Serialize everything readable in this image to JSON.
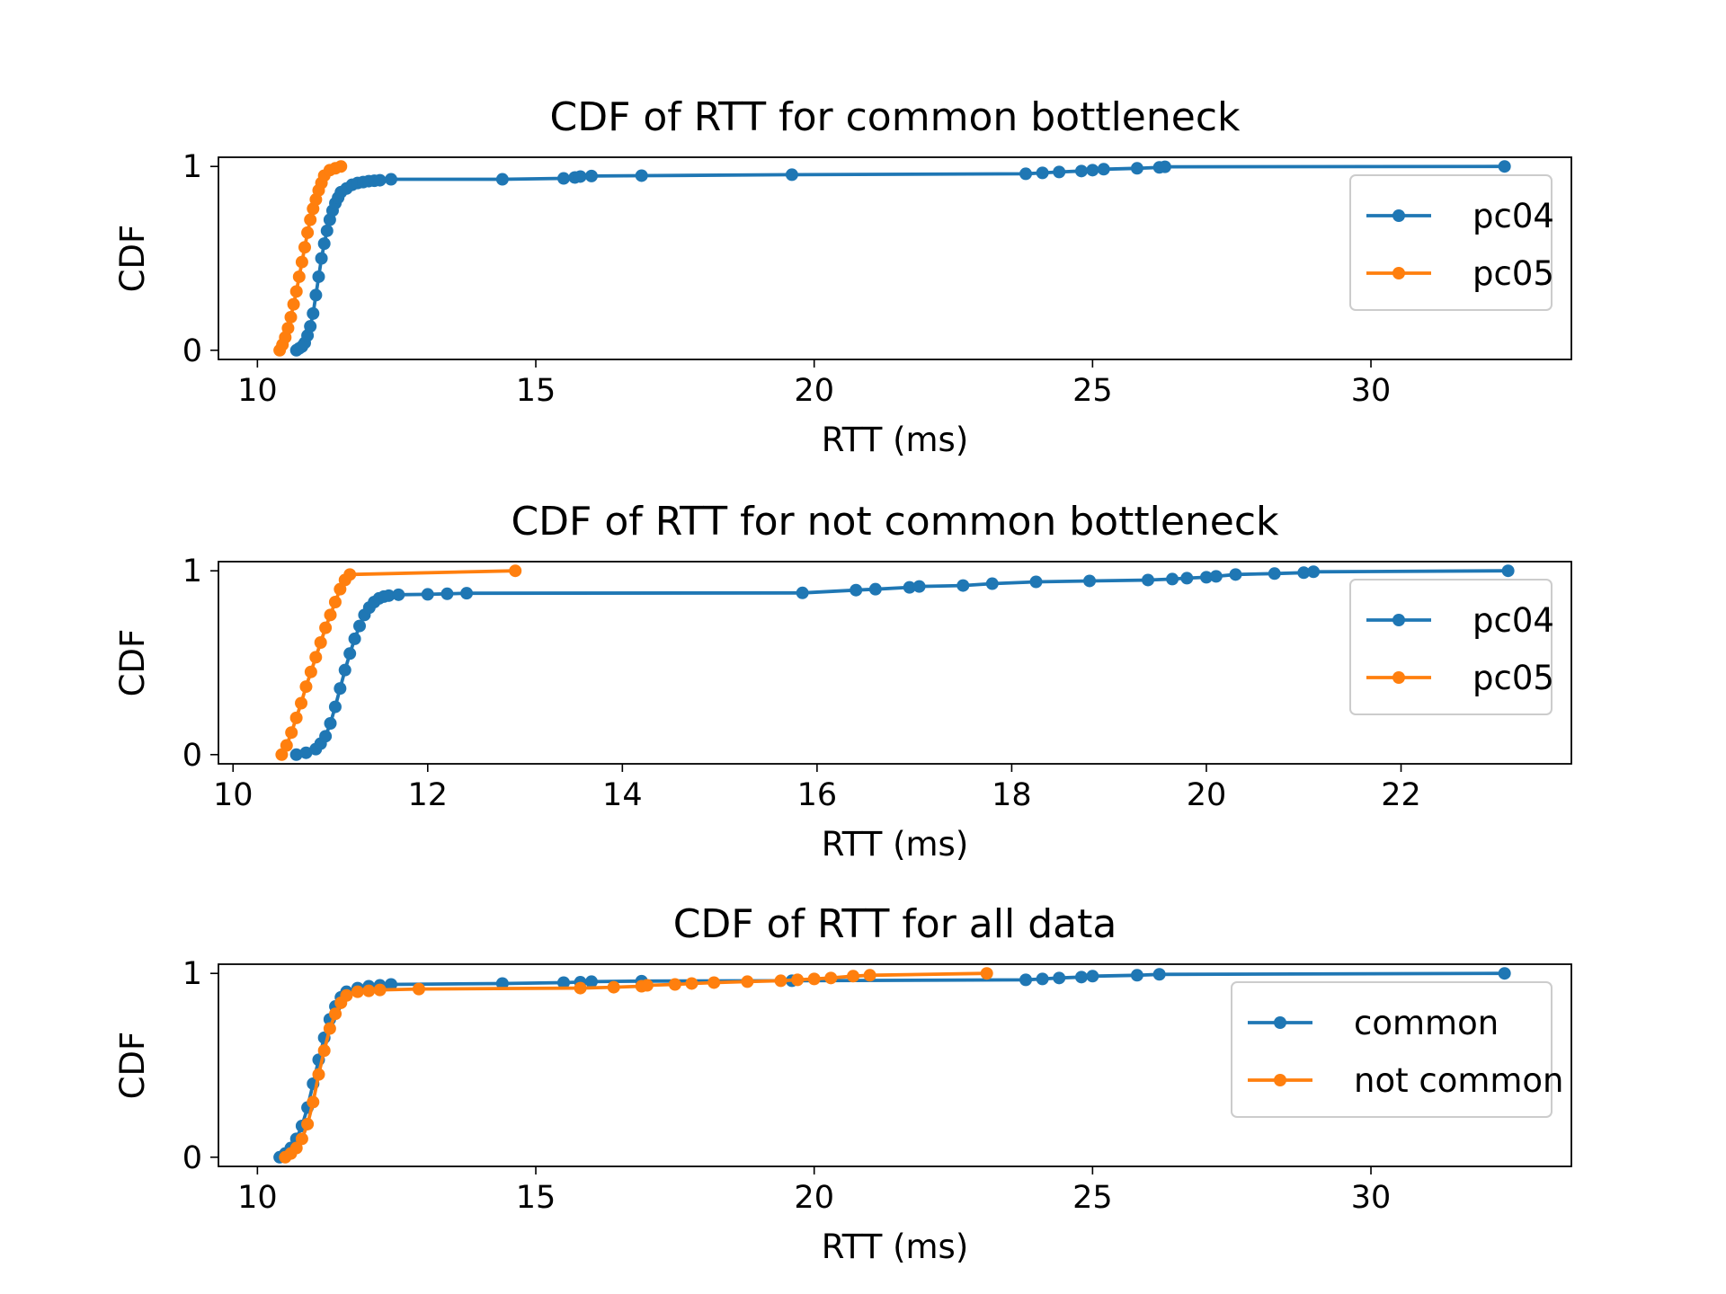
{
  "colors": {
    "series_1": "#1f77b4",
    "series_2": "#ff7f0e"
  },
  "chart_data": [
    {
      "type": "line",
      "title": "CDF of RTT for common bottleneck",
      "xlabel": "RTT (ms)",
      "ylabel": "CDF",
      "xlim": [
        9.3,
        33.6
      ],
      "ylim": [
        -0.05,
        1.05
      ],
      "xticks": [
        10,
        15,
        20,
        25,
        30
      ],
      "yticks": [
        0,
        1
      ],
      "legend": "upper-right",
      "series": [
        {
          "name": "pc04",
          "x": [
            10.7,
            10.75,
            10.8,
            10.85,
            10.9,
            10.95,
            11.0,
            11.05,
            11.1,
            11.15,
            11.2,
            11.25,
            11.3,
            11.35,
            11.4,
            11.45,
            11.5,
            11.6,
            11.7,
            11.8,
            11.9,
            12.0,
            12.1,
            12.2,
            12.4,
            14.4,
            15.5,
            15.7,
            15.8,
            16.0,
            16.9,
            19.6,
            23.8,
            24.1,
            24.4,
            24.8,
            25.0,
            25.2,
            25.8,
            26.2,
            26.3,
            32.4
          ],
          "y": [
            0.0,
            0.01,
            0.02,
            0.04,
            0.08,
            0.13,
            0.2,
            0.3,
            0.4,
            0.5,
            0.58,
            0.65,
            0.71,
            0.76,
            0.8,
            0.83,
            0.86,
            0.88,
            0.9,
            0.91,
            0.915,
            0.92,
            0.922,
            0.925,
            0.93,
            0.93,
            0.935,
            0.94,
            0.945,
            0.948,
            0.95,
            0.955,
            0.96,
            0.965,
            0.97,
            0.975,
            0.98,
            0.985,
            0.99,
            0.995,
            0.998,
            1.0
          ]
        },
        {
          "name": "pc05",
          "x": [
            10.4,
            10.45,
            10.5,
            10.55,
            10.6,
            10.65,
            10.7,
            10.75,
            10.8,
            10.85,
            10.9,
            10.95,
            11.0,
            11.05,
            11.1,
            11.15,
            11.2,
            11.3,
            11.4,
            11.5
          ],
          "y": [
            0.0,
            0.03,
            0.07,
            0.12,
            0.18,
            0.25,
            0.32,
            0.4,
            0.48,
            0.56,
            0.64,
            0.71,
            0.77,
            0.82,
            0.87,
            0.91,
            0.95,
            0.98,
            0.99,
            1.0
          ]
        }
      ]
    },
    {
      "type": "line",
      "title": "CDF of RTT for not common bottleneck",
      "xlabel": "RTT (ms)",
      "ylabel": "CDF",
      "xlim": [
        9.85,
        23.75
      ],
      "ylim": [
        -0.05,
        1.05
      ],
      "xticks": [
        10,
        12,
        14,
        16,
        18,
        20,
        22
      ],
      "yticks": [
        0,
        1
      ],
      "legend": "upper-right",
      "series": [
        {
          "name": "pc04",
          "x": [
            10.65,
            10.75,
            10.85,
            10.9,
            10.95,
            11.0,
            11.05,
            11.1,
            11.15,
            11.2,
            11.25,
            11.3,
            11.35,
            11.4,
            11.45,
            11.5,
            11.55,
            11.6,
            11.7,
            12.0,
            12.2,
            12.4,
            15.85,
            16.4,
            16.6,
            16.95,
            17.05,
            17.5,
            17.8,
            18.25,
            18.8,
            19.4,
            19.65,
            19.8,
            20.0,
            20.1,
            20.3,
            20.7,
            21.0,
            21.1,
            23.1
          ],
          "y": [
            0.0,
            0.01,
            0.03,
            0.06,
            0.1,
            0.17,
            0.26,
            0.36,
            0.46,
            0.55,
            0.63,
            0.7,
            0.76,
            0.8,
            0.83,
            0.85,
            0.86,
            0.865,
            0.87,
            0.872,
            0.875,
            0.878,
            0.88,
            0.895,
            0.9,
            0.91,
            0.915,
            0.92,
            0.93,
            0.94,
            0.945,
            0.95,
            0.955,
            0.96,
            0.965,
            0.97,
            0.98,
            0.985,
            0.99,
            0.995,
            1.0
          ]
        },
        {
          "name": "pc05",
          "x": [
            10.5,
            10.55,
            10.6,
            10.65,
            10.7,
            10.75,
            10.8,
            10.85,
            10.9,
            10.95,
            11.0,
            11.05,
            11.1,
            11.15,
            11.2,
            12.9
          ],
          "y": [
            0.0,
            0.05,
            0.12,
            0.2,
            0.28,
            0.37,
            0.45,
            0.53,
            0.61,
            0.69,
            0.76,
            0.83,
            0.9,
            0.95,
            0.98,
            1.0
          ]
        }
      ]
    },
    {
      "type": "line",
      "title": "CDF of RTT for all data",
      "xlabel": "RTT (ms)",
      "ylabel": "CDF",
      "xlim": [
        9.3,
        33.6
      ],
      "ylim": [
        -0.05,
        1.05
      ],
      "xticks": [
        10,
        15,
        20,
        25,
        30
      ],
      "yticks": [
        0,
        1
      ],
      "legend": "upper-right",
      "series": [
        {
          "name": "common",
          "x": [
            10.4,
            10.5,
            10.6,
            10.7,
            10.8,
            10.9,
            11.0,
            11.1,
            11.2,
            11.3,
            11.4,
            11.5,
            11.6,
            11.8,
            12.0,
            12.2,
            12.4,
            14.4,
            15.5,
            15.8,
            16.0,
            16.9,
            19.6,
            23.8,
            24.1,
            24.4,
            24.8,
            25.0,
            25.8,
            26.2,
            32.4
          ],
          "y": [
            0.0,
            0.02,
            0.05,
            0.1,
            0.17,
            0.27,
            0.4,
            0.53,
            0.65,
            0.75,
            0.82,
            0.87,
            0.9,
            0.92,
            0.93,
            0.935,
            0.94,
            0.945,
            0.95,
            0.952,
            0.955,
            0.958,
            0.96,
            0.965,
            0.97,
            0.975,
            0.98,
            0.985,
            0.99,
            0.995,
            1.0
          ]
        },
        {
          "name": "not common",
          "x": [
            10.5,
            10.6,
            10.7,
            10.8,
            10.9,
            11.0,
            11.1,
            11.2,
            11.3,
            11.4,
            11.5,
            11.6,
            11.8,
            12.0,
            12.2,
            12.9,
            15.8,
            16.4,
            16.9,
            17.0,
            17.5,
            17.8,
            18.2,
            18.8,
            19.4,
            19.7,
            20.0,
            20.3,
            20.7,
            21.0,
            23.1
          ],
          "y": [
            0.0,
            0.02,
            0.05,
            0.1,
            0.18,
            0.3,
            0.45,
            0.58,
            0.7,
            0.78,
            0.84,
            0.88,
            0.9,
            0.905,
            0.91,
            0.915,
            0.92,
            0.925,
            0.93,
            0.935,
            0.94,
            0.945,
            0.95,
            0.955,
            0.96,
            0.965,
            0.97,
            0.975,
            0.985,
            0.99,
            1.0
          ]
        }
      ]
    }
  ]
}
